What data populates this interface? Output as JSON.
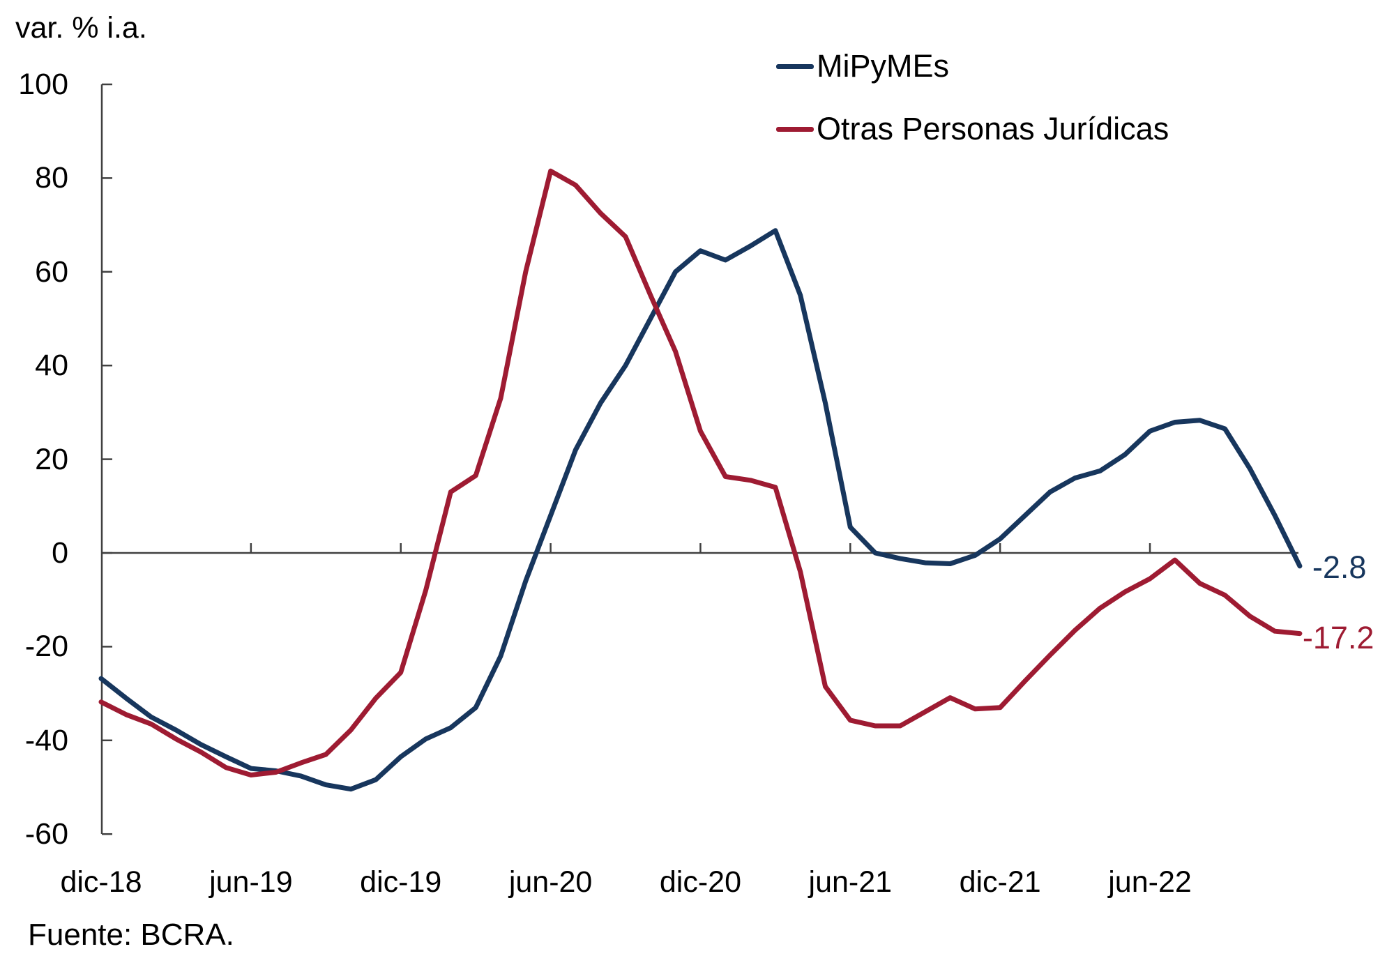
{
  "chart_data": {
    "type": "line",
    "ylabel": "var. % i.a.",
    "ylim": [
      -60,
      100
    ],
    "y_ticks": [
      100,
      80,
      60,
      40,
      20,
      0,
      -20,
      -40,
      -60
    ],
    "x_tick_labels": [
      "dic-18",
      "jun-19",
      "dic-19",
      "jun-20",
      "dic-20",
      "jun-21",
      "dic-21",
      "jun-22"
    ],
    "x_tick_month_index": [
      0,
      6,
      12,
      18,
      24,
      30,
      36,
      42
    ],
    "grid": "zero-baseline-only",
    "legend_position": "top-center",
    "axis_color": "#404040",
    "categories": [
      "dic-18",
      "ene-19",
      "feb-19",
      "mar-19",
      "abr-19",
      "may-19",
      "jun-19",
      "jul-19",
      "ago-19",
      "sep-19",
      "oct-19",
      "nov-19",
      "dic-19",
      "ene-20",
      "feb-20",
      "mar-20",
      "abr-20",
      "may-20",
      "jun-20",
      "jul-20",
      "ago-20",
      "sep-20",
      "oct-20",
      "nov-20",
      "dic-20",
      "ene-21",
      "feb-21",
      "mar-21",
      "abr-21",
      "may-21",
      "jun-21",
      "jul-21",
      "ago-21",
      "sep-21",
      "oct-21",
      "nov-21",
      "dic-21",
      "ene-22",
      "feb-22",
      "mar-22",
      "abr-22",
      "may-22",
      "jun-22",
      "jul-22",
      "ago-22",
      "sep-22",
      "oct-22",
      "nov-22",
      "dic-22"
    ],
    "series": [
      {
        "name": "MiPyMEs",
        "color": "#17365D",
        "values": [
          -26.8,
          -31.0,
          -35.0,
          -37.8,
          -40.9,
          -43.5,
          -46.0,
          -46.5,
          -47.6,
          -49.5,
          -50.4,
          -48.4,
          -43.5,
          -39.7,
          -37.3,
          -33.0,
          -22.0,
          -6.0,
          8.0,
          22.0,
          32.0,
          40.0,
          50.0,
          60.0,
          64.5,
          62.5,
          65.5,
          68.8,
          55.0,
          32.0,
          5.5,
          0.0,
          -1.2,
          -2.1,
          -2.3,
          -0.5,
          3.0,
          8.0,
          13.0,
          16.0,
          17.5,
          21.0,
          26.0,
          27.9,
          28.3,
          26.5,
          18.0,
          8.0,
          -2.8
        ]
      },
      {
        "name": "Otras Personas Jurídicas",
        "color": "#9E1B32",
        "values": [
          -31.8,
          -34.5,
          -36.5,
          -39.7,
          -42.5,
          -45.8,
          -47.4,
          -46.8,
          -44.8,
          -43.0,
          -37.8,
          -31.0,
          -25.5,
          -8.0,
          13.0,
          16.5,
          33.0,
          60.0,
          81.5,
          78.5,
          72.5,
          67.5,
          55.0,
          43.0,
          26.0,
          16.3,
          15.5,
          14.0,
          -4.0,
          -28.5,
          -35.7,
          -36.9,
          -36.9,
          -33.9,
          -30.9,
          -33.3,
          -33.0,
          -27.3,
          -21.8,
          -16.5,
          -11.8,
          -8.3,
          -5.5,
          -1.5,
          -6.5,
          -9.0,
          -13.5,
          -16.7,
          -17.2
        ]
      }
    ],
    "annotations": [
      {
        "text": "-2.8",
        "series": "MiPyMEs",
        "color": "#17365D"
      },
      {
        "text": "-17.2",
        "series": "Otras Personas Jurídicas",
        "color": "#9E1B32"
      }
    ]
  },
  "source": {
    "text": "Fuente: BCRA."
  }
}
